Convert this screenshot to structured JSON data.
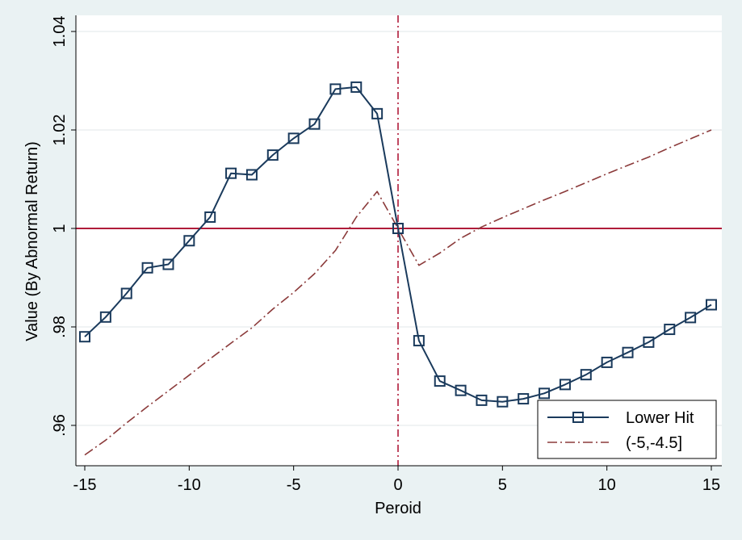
{
  "chart_data": {
    "type": "line",
    "title": "",
    "xlabel": "Peroid",
    "ylabel": "Value (By Abnormal Return)",
    "xlim": [
      -15,
      15
    ],
    "ylim": [
      0.954,
      1.04
    ],
    "x_ticks": [
      -15,
      -10,
      -5,
      0,
      5,
      10,
      15
    ],
    "x_tick_labels": [
      "-15",
      "-10",
      "-5",
      "0",
      "5",
      "10",
      "15"
    ],
    "y_ticks": [
      0.96,
      0.98,
      1.0,
      1.02,
      1.04
    ],
    "y_tick_labels": [
      ".96",
      ".98",
      "1",
      "1.02",
      "1.04"
    ],
    "grid": true,
    "legend_position": "bottom-right",
    "reference_lines": {
      "horizontal": {
        "y": 1.0,
        "color": "#b01c3a",
        "style": "solid"
      },
      "vertical": {
        "x": 0,
        "color": "#b01c3a",
        "style": "dash-dot"
      }
    },
    "series": [
      {
        "name": "Lower Hit",
        "color": "#1a3a5c",
        "style": "solid",
        "marker": "square",
        "x": [
          -15,
          -14,
          -13,
          -12,
          -11,
          -10,
          -9,
          -8,
          -7,
          -6,
          -5,
          -4,
          -3,
          -2,
          -1,
          0,
          1,
          2,
          3,
          4,
          5,
          6,
          7,
          8,
          9,
          10,
          11,
          12,
          13,
          14,
          15
        ],
        "y": [
          0.978,
          0.982,
          0.9868,
          0.992,
          0.9927,
          0.9975,
          1.0023,
          1.0112,
          1.0109,
          1.0149,
          1.0183,
          1.0212,
          1.0283,
          1.0287,
          1.0233,
          1.0,
          0.9772,
          0.969,
          0.9671,
          0.9651,
          0.9648,
          0.9654,
          0.9665,
          0.9683,
          0.9703,
          0.9728,
          0.9748,
          0.9769,
          0.9795,
          0.9819,
          0.9845
        ]
      },
      {
        "name": "(-5,-4.5]",
        "color": "#8b3a3a",
        "style": "dash-dot",
        "marker": "none",
        "x": [
          -15,
          -14,
          -13,
          -12,
          -11,
          -10,
          -9,
          -8,
          -7,
          -6,
          -5,
          -4,
          -3,
          -2,
          -1,
          0,
          1,
          2,
          3,
          4,
          5,
          6,
          7,
          8,
          9,
          10,
          11,
          12,
          13,
          14,
          15
        ],
        "y": [
          0.954,
          0.957,
          0.9605,
          0.9638,
          0.967,
          0.9702,
          0.9735,
          0.9767,
          0.9798,
          0.9836,
          0.987,
          0.9908,
          0.9955,
          1.0023,
          1.0075,
          1.0,
          0.9925,
          0.995,
          0.998,
          1.0003,
          1.0022,
          1.004,
          1.0058,
          1.0075,
          1.0093,
          1.0111,
          1.0128,
          1.0145,
          1.0164,
          1.0182,
          1.02
        ]
      }
    ]
  }
}
